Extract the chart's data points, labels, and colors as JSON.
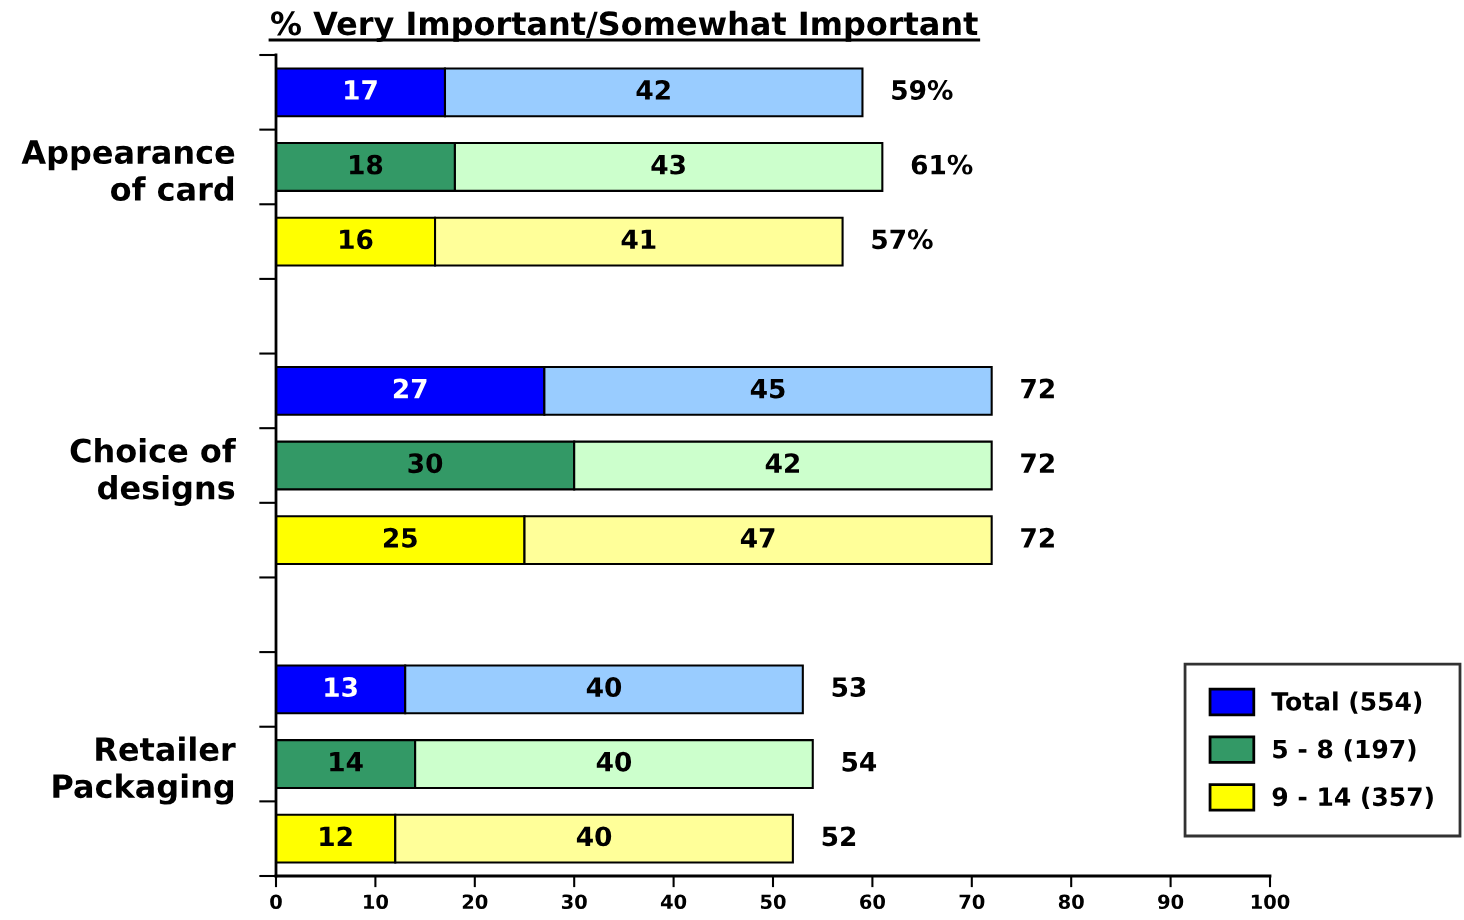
{
  "chart_data": {
    "type": "bar",
    "orientation": "horizontal",
    "stacked": true,
    "title": "% Very Important/Somewhat Important",
    "categories": [
      null,
      "Appearance\nof card",
      null,
      null,
      null,
      "Choice of\ndesigns",
      null,
      null,
      null,
      "Retailer\nPackaging",
      null
    ],
    "series": [
      {
        "name": "Total (554)",
        "color": "#0000ff",
        "values": [
          17,
          null,
          null,
          null,
          27,
          null,
          null,
          null,
          13,
          null,
          null
        ]
      },
      {
        "color": "#99ccff",
        "values": [
          42,
          null,
          null,
          null,
          45,
          null,
          null,
          null,
          40,
          null,
          null
        ]
      },
      {
        "name": "5 - 8 (197)",
        "color": "#339966",
        "values": [
          null,
          18,
          null,
          null,
          null,
          30,
          null,
          null,
          null,
          14,
          null
        ]
      },
      {
        "color": "#ccffcc",
        "values": [
          null,
          43,
          null,
          null,
          null,
          42,
          null,
          null,
          null,
          40,
          null
        ]
      },
      {
        "name": "9 - 14 (357)",
        "color": "#ffff00",
        "values": [
          null,
          null,
          16,
          null,
          null,
          null,
          25,
          null,
          null,
          null,
          12
        ]
      },
      {
        "color": "#ffff99",
        "values": [
          null,
          null,
          41,
          null,
          null,
          null,
          47,
          null,
          null,
          null,
          40
        ]
      }
    ],
    "xlim": [
      0,
      100
    ],
    "xticks": [
      0,
      10,
      20,
      30,
      40,
      50,
      60,
      70,
      80,
      90,
      100
    ],
    "data_labels": true,
    "totals": [
      "59%",
      "61%",
      "57%",
      null,
      "72",
      "72",
      "72",
      null,
      "53",
      "54",
      "52"
    ],
    "legend": "bottom right"
  }
}
